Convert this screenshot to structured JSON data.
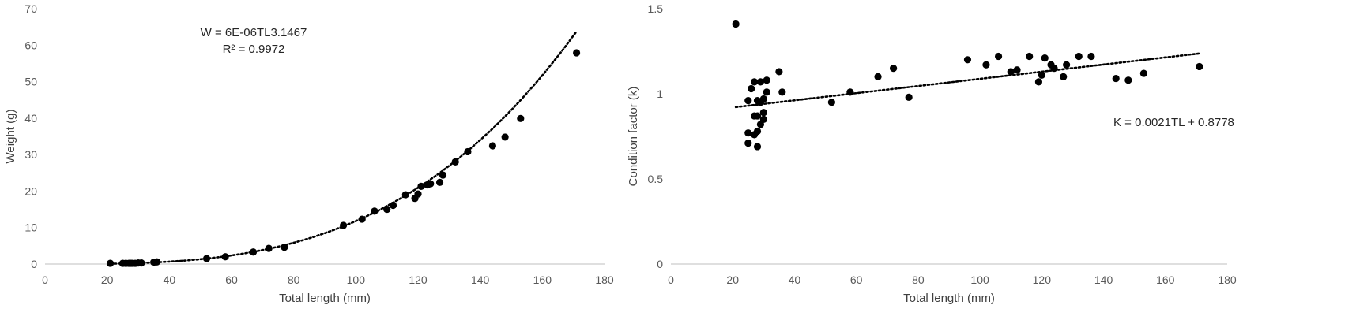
{
  "chart_data": [
    {
      "type": "scatter",
      "xlabel": "Total length (mm)",
      "ylabel": "Weight (g)",
      "xlim": [
        0,
        180
      ],
      "ylim": [
        0,
        70
      ],
      "xticks": [
        "0",
        "20",
        "40",
        "60",
        "80",
        "100",
        "120",
        "140",
        "160",
        "180"
      ],
      "yticks": [
        "0",
        "10",
        "20",
        "30",
        "40",
        "50",
        "60",
        "70"
      ],
      "grid": false,
      "trendline": {
        "type": "power",
        "a": 6e-06,
        "b": 3.1467,
        "x_range": [
          21,
          171
        ]
      },
      "annotations": [
        "W = 6E-06TL3.1467",
        "R² = 0.9972"
      ],
      "points": [
        [
          21,
          0.2
        ],
        [
          25,
          0.2
        ],
        [
          26,
          0.2
        ],
        [
          27,
          0.2
        ],
        [
          27.5,
          0.2
        ],
        [
          28,
          0.2
        ],
        [
          29,
          0.2
        ],
        [
          30,
          0.3
        ],
        [
          31,
          0.3
        ],
        [
          35,
          0.5
        ],
        [
          36,
          0.6
        ],
        [
          52,
          1.5
        ],
        [
          58,
          2.0
        ],
        [
          67,
          3.3
        ],
        [
          72,
          4.3
        ],
        [
          77,
          4.6
        ],
        [
          96,
          10.6
        ],
        [
          102,
          12.3
        ],
        [
          106,
          14.5
        ],
        [
          110,
          15.0
        ],
        [
          112,
          16.1
        ],
        [
          116,
          19.0
        ],
        [
          119,
          18.0
        ],
        [
          120,
          19.2
        ],
        [
          121,
          21.3
        ],
        [
          123,
          21.7
        ],
        [
          124,
          22.0
        ],
        [
          127,
          22.4
        ],
        [
          128,
          24.4
        ],
        [
          132,
          28.0
        ],
        [
          136,
          30.8
        ],
        [
          144,
          32.4
        ],
        [
          148,
          34.8
        ],
        [
          153,
          39.9
        ],
        [
          171,
          57.9
        ]
      ]
    },
    {
      "type": "scatter",
      "xlabel": "Total length (mm)",
      "ylabel": "Condition factor (k)",
      "xlim": [
        0,
        180
      ],
      "ylim": [
        0,
        1.5
      ],
      "xticks": [
        "0",
        "20",
        "40",
        "60",
        "80",
        "100",
        "120",
        "140",
        "160",
        "180"
      ],
      "yticks": [
        "0",
        "0.5",
        "1",
        "1.5"
      ],
      "grid": false,
      "trendline": {
        "type": "linear",
        "slope": 0.0021,
        "intercept": 0.8778,
        "x_range": [
          21,
          171
        ]
      },
      "annotations": [
        "K = 0.0021TL + 0.8778"
      ],
      "points": [
        [
          21,
          1.41
        ],
        [
          25,
          0.71
        ],
        [
          25,
          0.77
        ],
        [
          25,
          0.96
        ],
        [
          26,
          1.03
        ],
        [
          27,
          1.07
        ],
        [
          27,
          0.87
        ],
        [
          27,
          0.76
        ],
        [
          28,
          0.96
        ],
        [
          28,
          0.87
        ],
        [
          28,
          0.78
        ],
        [
          28,
          0.69
        ],
        [
          29,
          0.82
        ],
        [
          29,
          0.95
        ],
        [
          29,
          1.07
        ],
        [
          30,
          0.85
        ],
        [
          30,
          0.89
        ],
        [
          30,
          0.97
        ],
        [
          31,
          1.01
        ],
        [
          31,
          1.08
        ],
        [
          35,
          1.13
        ],
        [
          36,
          1.01
        ],
        [
          52,
          0.95
        ],
        [
          58,
          1.01
        ],
        [
          67,
          1.1
        ],
        [
          72,
          1.15
        ],
        [
          77,
          0.98
        ],
        [
          96,
          1.2
        ],
        [
          102,
          1.17
        ],
        [
          106,
          1.22
        ],
        [
          110,
          1.13
        ],
        [
          112,
          1.14
        ],
        [
          116,
          1.22
        ],
        [
          119,
          1.07
        ],
        [
          120,
          1.11
        ],
        [
          121,
          1.21
        ],
        [
          123,
          1.17
        ],
        [
          124,
          1.15
        ],
        [
          127,
          1.1
        ],
        [
          128,
          1.17
        ],
        [
          132,
          1.22
        ],
        [
          136,
          1.22
        ],
        [
          144,
          1.09
        ],
        [
          148,
          1.08
        ],
        [
          153,
          1.12
        ],
        [
          171,
          1.16
        ]
      ]
    }
  ]
}
